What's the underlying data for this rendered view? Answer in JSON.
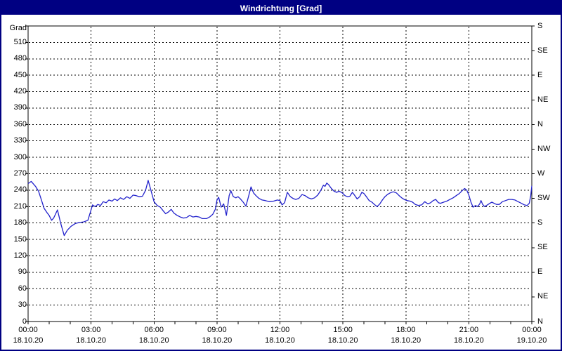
{
  "window": {
    "title": "Windrichtung [Grad]"
  },
  "colors": {
    "titlebar": "#000082",
    "border": "#000082",
    "title_text": "#FFFFFF",
    "background": "#FFFFFF",
    "grid": "#000000",
    "line": "#2222CC"
  },
  "chart_data": {
    "type": "line",
    "title": "Windrichtung [Grad]",
    "ylabel": "Grad",
    "grid": "dashed",
    "legend": "none",
    "y_axis": {
      "unit_label": "Grad",
      "min": 0,
      "max": 540,
      "grid_step": 30,
      "tick_labels": [
        0,
        30,
        60,
        90,
        120,
        150,
        180,
        210,
        240,
        270,
        300,
        330,
        360,
        390,
        420,
        450,
        480,
        510
      ]
    },
    "right_axis": {
      "tick_step_deg": 45,
      "labels_bottom_to_top": [
        "N",
        "NE",
        "E",
        "SE",
        "S",
        "SW",
        "W",
        "NW",
        "N",
        "NE",
        "E",
        "SE",
        "S"
      ]
    },
    "x_axis": {
      "range_hours": [
        0,
        24
      ],
      "minor_tick_hours": 1,
      "major_ticks": [
        {
          "hour": 0,
          "time": "00:00",
          "date": "18.10.20"
        },
        {
          "hour": 3,
          "time": "03:00",
          "date": "18.10.20"
        },
        {
          "hour": 6,
          "time": "06:00",
          "date": "18.10.20"
        },
        {
          "hour": 9,
          "time": "09:00",
          "date": "18.10.20"
        },
        {
          "hour": 12,
          "time": "12:00",
          "date": "18.10.20"
        },
        {
          "hour": 15,
          "time": "15:00",
          "date": "18.10.20"
        },
        {
          "hour": 18,
          "time": "18:00",
          "date": "18.10.20"
        },
        {
          "hour": 21,
          "time": "21:00",
          "date": "18.10.20"
        },
        {
          "hour": 24,
          "time": "00:00",
          "date": "19.10.20"
        }
      ]
    },
    "series": [
      {
        "name": "Windrichtung",
        "unit": "Grad",
        "points": [
          [
            0,
            252
          ],
          [
            0.15,
            256
          ],
          [
            0.35,
            247
          ],
          [
            0.5,
            238
          ],
          [
            0.62,
            224
          ],
          [
            0.76,
            207
          ],
          [
            0.9,
            199
          ],
          [
            1.0,
            194
          ],
          [
            1.12,
            185
          ],
          [
            1.22,
            189
          ],
          [
            1.4,
            204
          ],
          [
            1.55,
            180
          ],
          [
            1.72,
            157
          ],
          [
            1.87,
            167
          ],
          [
            2.05,
            174
          ],
          [
            2.25,
            179
          ],
          [
            2.45,
            181
          ],
          [
            2.65,
            182
          ],
          [
            2.85,
            185
          ],
          [
            2.97,
            200
          ],
          [
            3.07,
            213
          ],
          [
            3.2,
            210
          ],
          [
            3.32,
            214
          ],
          [
            3.45,
            212
          ],
          [
            3.58,
            219
          ],
          [
            3.72,
            217
          ],
          [
            3.85,
            222
          ],
          [
            4.0,
            220
          ],
          [
            4.12,
            224
          ],
          [
            4.25,
            221
          ],
          [
            4.4,
            226
          ],
          [
            4.55,
            223
          ],
          [
            4.7,
            228
          ],
          [
            4.85,
            225
          ],
          [
            5.0,
            231
          ],
          [
            5.15,
            230
          ],
          [
            5.3,
            228
          ],
          [
            5.45,
            229
          ],
          [
            5.6,
            240
          ],
          [
            5.72,
            258
          ],
          [
            5.85,
            240
          ],
          [
            6.0,
            219
          ],
          [
            6.15,
            212
          ],
          [
            6.3,
            209
          ],
          [
            6.42,
            203
          ],
          [
            6.55,
            197
          ],
          [
            6.68,
            200
          ],
          [
            6.82,
            205
          ],
          [
            6.95,
            198
          ],
          [
            7.1,
            194
          ],
          [
            7.25,
            191
          ],
          [
            7.4,
            189
          ],
          [
            7.55,
            190
          ],
          [
            7.7,
            194
          ],
          [
            7.85,
            191
          ],
          [
            8.0,
            192
          ],
          [
            8.15,
            191
          ],
          [
            8.3,
            188
          ],
          [
            8.5,
            188
          ],
          [
            8.65,
            191
          ],
          [
            8.8,
            196
          ],
          [
            8.92,
            205
          ],
          [
            9.0,
            222
          ],
          [
            9.08,
            227
          ],
          [
            9.2,
            209
          ],
          [
            9.32,
            215
          ],
          [
            9.45,
            194
          ],
          [
            9.58,
            230
          ],
          [
            9.66,
            239
          ],
          [
            9.78,
            228
          ],
          [
            9.9,
            226
          ],
          [
            10.0,
            228
          ],
          [
            10.12,
            224
          ],
          [
            10.25,
            218
          ],
          [
            10.38,
            211
          ],
          [
            10.5,
            228
          ],
          [
            10.62,
            246
          ],
          [
            10.74,
            235
          ],
          [
            10.86,
            230
          ],
          [
            11.0,
            225
          ],
          [
            11.15,
            222
          ],
          [
            11.3,
            221
          ],
          [
            11.5,
            219
          ],
          [
            11.7,
            220
          ],
          [
            11.88,
            222
          ],
          [
            12.0,
            221
          ],
          [
            12.1,
            213
          ],
          [
            12.22,
            217
          ],
          [
            12.35,
            236
          ],
          [
            12.5,
            228
          ],
          [
            12.62,
            225
          ],
          [
            12.75,
            223
          ],
          [
            12.9,
            225
          ],
          [
            13.05,
            232
          ],
          [
            13.2,
            230
          ],
          [
            13.35,
            226
          ],
          [
            13.5,
            224
          ],
          [
            13.65,
            226
          ],
          [
            13.8,
            231
          ],
          [
            13.95,
            240
          ],
          [
            14.07,
            249
          ],
          [
            14.15,
            247
          ],
          [
            14.23,
            253
          ],
          [
            14.32,
            250
          ],
          [
            14.45,
            243
          ],
          [
            14.58,
            238
          ],
          [
            14.7,
            236
          ],
          [
            14.82,
            238
          ],
          [
            14.93,
            236
          ],
          [
            15.0,
            234
          ],
          [
            15.1,
            230
          ],
          [
            15.22,
            228
          ],
          [
            15.33,
            229
          ],
          [
            15.45,
            236
          ],
          [
            15.57,
            230
          ],
          [
            15.68,
            224
          ],
          [
            15.8,
            228
          ],
          [
            15.9,
            236
          ],
          [
            16.0,
            234
          ],
          [
            16.12,
            228
          ],
          [
            16.25,
            221
          ],
          [
            16.38,
            218
          ],
          [
            16.5,
            214
          ],
          [
            16.63,
            210
          ],
          [
            16.76,
            215
          ],
          [
            16.88,
            222
          ],
          [
            17.0,
            228
          ],
          [
            17.12,
            232
          ],
          [
            17.25,
            235
          ],
          [
            17.4,
            237
          ],
          [
            17.55,
            235
          ],
          [
            17.68,
            230
          ],
          [
            17.8,
            226
          ],
          [
            17.92,
            223
          ],
          [
            18.05,
            221
          ],
          [
            18.2,
            220
          ],
          [
            18.32,
            218
          ],
          [
            18.45,
            214
          ],
          [
            18.6,
            212
          ],
          [
            18.75,
            213
          ],
          [
            18.9,
            219
          ],
          [
            19.05,
            215
          ],
          [
            19.18,
            217
          ],
          [
            19.3,
            221
          ],
          [
            19.42,
            223
          ],
          [
            19.55,
            217
          ],
          [
            19.65,
            216
          ],
          [
            19.8,
            218
          ],
          [
            19.95,
            220
          ],
          [
            20.1,
            223
          ],
          [
            20.25,
            226
          ],
          [
            20.4,
            230
          ],
          [
            20.55,
            234
          ],
          [
            20.68,
            239
          ],
          [
            20.8,
            243
          ],
          [
            20.9,
            240
          ],
          [
            21.0,
            231
          ],
          [
            21.1,
            218
          ],
          [
            21.2,
            209
          ],
          [
            21.32,
            212
          ],
          [
            21.42,
            210
          ],
          [
            21.52,
            215
          ],
          [
            21.58,
            221
          ],
          [
            21.66,
            214
          ],
          [
            21.75,
            210
          ],
          [
            21.88,
            213
          ],
          [
            22.0,
            216
          ],
          [
            22.1,
            218
          ],
          [
            22.2,
            216
          ],
          [
            22.32,
            214
          ],
          [
            22.45,
            214
          ],
          [
            22.6,
            219
          ],
          [
            22.75,
            221
          ],
          [
            22.9,
            223
          ],
          [
            23.05,
            223
          ],
          [
            23.2,
            222
          ],
          [
            23.35,
            219
          ],
          [
            23.5,
            216
          ],
          [
            23.65,
            213
          ],
          [
            23.78,
            212
          ],
          [
            23.88,
            216
          ],
          [
            23.95,
            230
          ],
          [
            24.0,
            248
          ]
        ]
      }
    ]
  }
}
